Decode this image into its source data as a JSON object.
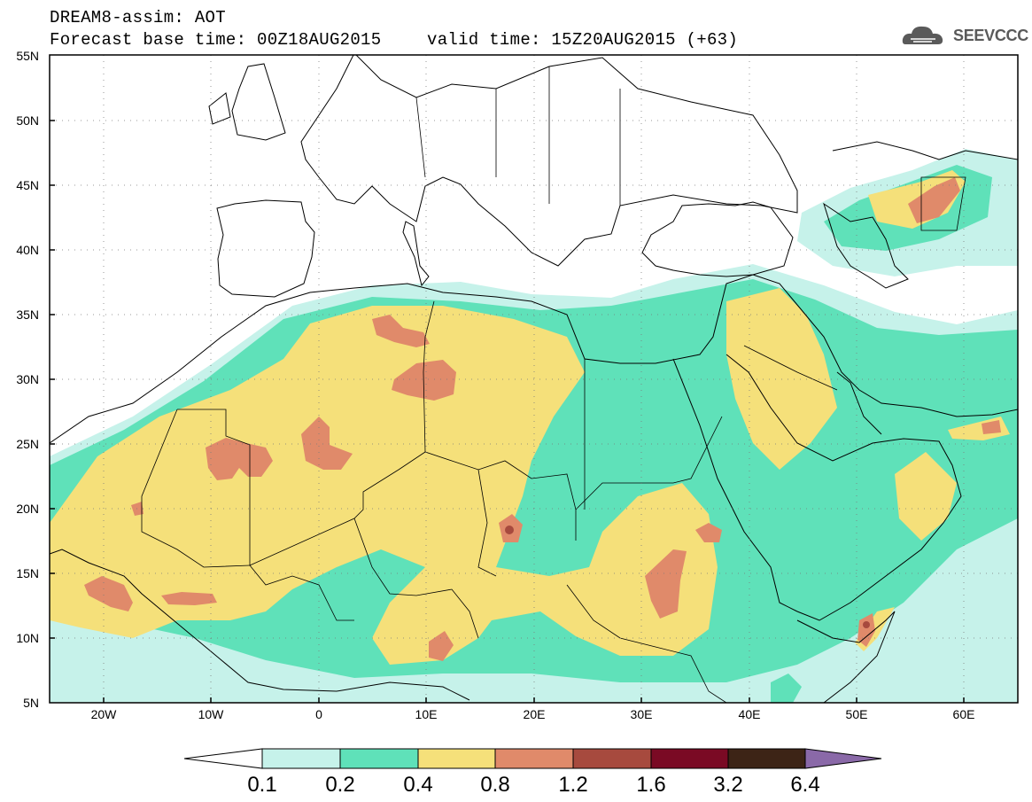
{
  "header": {
    "title": "DREAM8-assim: AOT",
    "base_time": "Forecast base time: 00Z18AUG2015",
    "valid_time": "valid time: 15Z20AUG2015 (+63)"
  },
  "logo": {
    "text": "SEEVCCC",
    "icon": "cloud-icon"
  },
  "axes": {
    "lat_labels": [
      "55N",
      "50N",
      "45N",
      "40N",
      "35N",
      "30N",
      "25N",
      "20N",
      "15N",
      "10N",
      "5N"
    ],
    "lon_labels": [
      "20W",
      "10W",
      "0",
      "10E",
      "20E",
      "30E",
      "40E",
      "50E",
      "60E"
    ]
  },
  "colorbar": {
    "labels": [
      "0.1",
      "0.2",
      "0.4",
      "0.8",
      "1.2",
      "1.6",
      "3.2",
      "6.4"
    ],
    "colors": [
      "#ffffff",
      "#c6f2ea",
      "#5fe1b9",
      "#f5e07a",
      "#e08a6a",
      "#a74a3e",
      "#7a0a24",
      "#3d2416",
      "#8a69a8"
    ]
  },
  "colors": {
    "level_01": "#c6f2ea",
    "level_02": "#5fe1b9",
    "level_04": "#f5e07a",
    "level_08": "#e08a6a",
    "level_12": "#a74a3e"
  }
}
